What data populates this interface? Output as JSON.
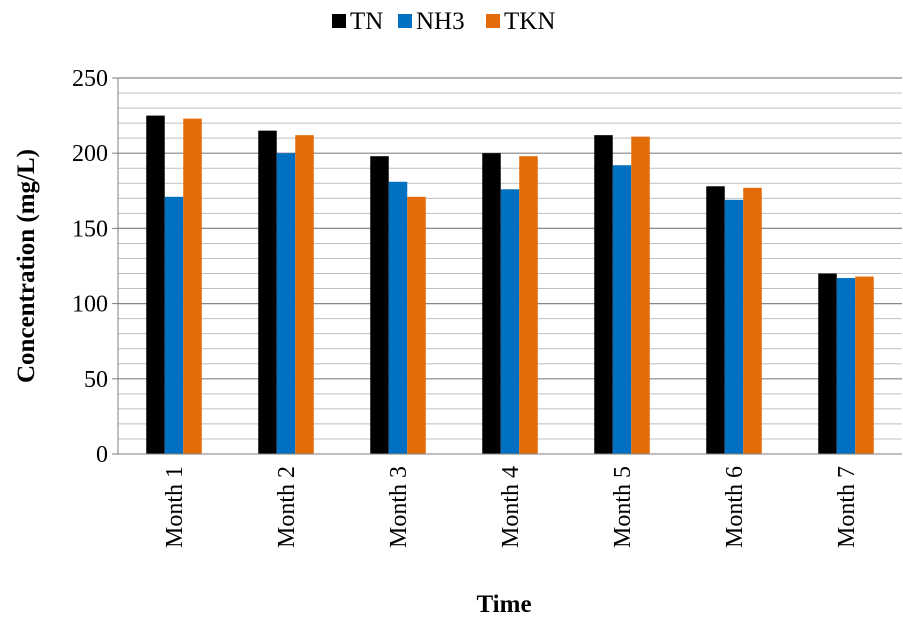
{
  "chart_data": {
    "type": "bar",
    "title": "",
    "xlabel": "Time",
    "ylabel": "Concentration (mg/L)",
    "categories": [
      "Month 1",
      "Month 2",
      "Month 3",
      "Month 4",
      "Month 5",
      "Month 6",
      "Month 7"
    ],
    "series": [
      {
        "name": "TN",
        "color": "#000000",
        "values": [
          225,
          215,
          198,
          200,
          212,
          178,
          120
        ]
      },
      {
        "name": "NH3",
        "color": "#0070c0",
        "values": [
          171,
          200,
          181,
          176,
          192,
          169,
          117
        ]
      },
      {
        "name": "TKN",
        "color": "#e36c09",
        "values": [
          223,
          212,
          171,
          198,
          211,
          177,
          118
        ]
      }
    ],
    "ylim": [
      0,
      250
    ],
    "y_ticks": [
      0,
      50,
      100,
      150,
      200,
      250
    ],
    "grid": true,
    "legend_position": "top-center"
  }
}
